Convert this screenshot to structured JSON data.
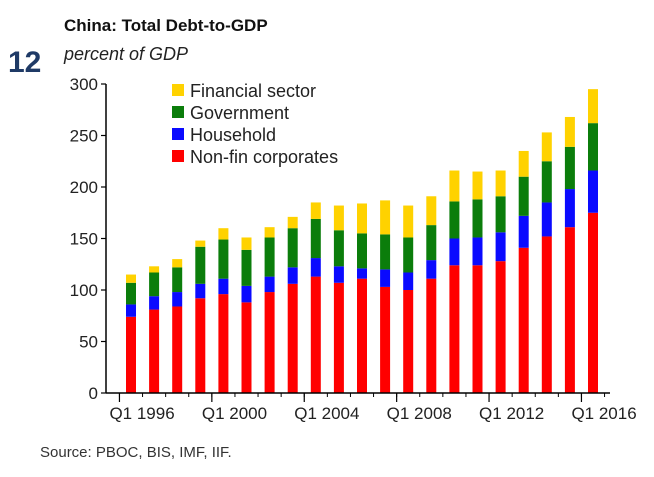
{
  "figure_number": "12",
  "source": "Source: PBOC, BIS, IMF, IIF.",
  "chart_data": {
    "type": "bar",
    "stacked": true,
    "title": "China: Total Debt-to-GDP",
    "subtitle": "percent of GDP",
    "ylim": [
      0,
      300
    ],
    "yticks": [
      0,
      50,
      100,
      150,
      200,
      250,
      300
    ],
    "categories": [
      "1996",
      "1997",
      "1998",
      "1999",
      "2000",
      "2001",
      "2002",
      "2003",
      "2004",
      "2005",
      "2006",
      "2007",
      "2008",
      "2009",
      "2010",
      "2011",
      "2012",
      "2013",
      "2014",
      "2015",
      "2016"
    ],
    "xtick_labels": [
      {
        "label": "Q1 1996",
        "index": 0
      },
      {
        "label": "Q1 2000",
        "index": 4
      },
      {
        "label": "Q1 2004",
        "index": 8
      },
      {
        "label": "Q1 2008",
        "index": 12
      },
      {
        "label": "Q1 2012",
        "index": 16
      },
      {
        "label": "Q1 2016",
        "index": 20
      }
    ],
    "legend_position": "top-left",
    "series": [
      {
        "name": "Non-fin corporates",
        "color": "#ff0000",
        "values": [
          74,
          81,
          84,
          92,
          96,
          88,
          98,
          106,
          113,
          107,
          111,
          103,
          100,
          111,
          124,
          124,
          128,
          141,
          152,
          161,
          175
        ]
      },
      {
        "name": "Household",
        "color": "#0a0aff",
        "values": [
          12,
          13,
          14,
          14,
          15,
          16,
          15,
          16,
          18,
          16,
          10,
          17,
          17,
          18,
          26,
          27,
          28,
          31,
          33,
          37,
          41
        ]
      },
      {
        "name": "Government",
        "color": "#0b7d0b",
        "values": [
          21,
          23,
          24,
          36,
          38,
          35,
          38,
          38,
          38,
          35,
          34,
          34,
          34,
          34,
          36,
          37,
          35,
          38,
          40,
          41,
          46
        ]
      },
      {
        "name": "Financial sector",
        "color": "#ffd200",
        "values": [
          8,
          6,
          8,
          6,
          11,
          12,
          10,
          11,
          16,
          24,
          29,
          33,
          31,
          28,
          30,
          27,
          25,
          25,
          28,
          29,
          33
        ]
      }
    ]
  }
}
